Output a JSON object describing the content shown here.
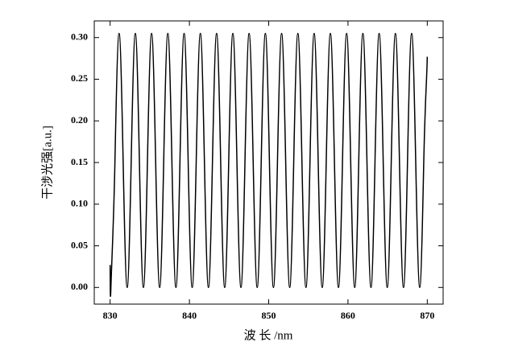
{
  "chart_data": {
    "type": "line",
    "xlabel": "波 长 /nm",
    "ylabel": "干涉光强[a.u.]",
    "xlim": [
      828,
      872
    ],
    "xticks": [
      830,
      840,
      850,
      860,
      870
    ],
    "ylim": [
      -0.02,
      0.32
    ],
    "yticks": [
      {
        "value": 0,
        "label": "0.00"
      },
      {
        "value": 0.05,
        "label": "0.05"
      },
      {
        "value": 0.1,
        "label": "0.10"
      },
      {
        "value": 0.15,
        "label": "0.15"
      },
      {
        "value": 0.2,
        "label": "0.20"
      },
      {
        "value": 0.25,
        "label": "0.25"
      },
      {
        "value": 0.3,
        "label": "0.30"
      }
    ],
    "color": "#000000",
    "x": [
      830.0,
      830.1,
      830.61,
      831.13,
      831.64,
      832.15,
      832.66,
      833.18,
      833.69,
      834.2,
      834.71,
      835.23,
      835.74,
      836.25,
      836.76,
      837.28,
      837.79,
      838.3,
      838.81,
      839.33,
      839.84,
      840.35,
      840.86,
      841.38,
      841.89,
      842.4,
      842.91,
      843.43,
      843.94,
      844.45,
      844.96,
      845.48,
      845.99,
      846.5,
      847.01,
      847.53,
      848.04,
      848.55,
      849.06,
      849.58,
      850.09,
      850.6,
      851.11,
      851.63,
      852.14,
      852.65,
      853.16,
      853.68,
      854.19,
      854.7,
      855.21,
      855.73,
      856.24,
      856.75,
      857.26,
      857.78,
      858.29,
      858.8,
      859.31,
      859.83,
      860.34,
      860.85,
      861.36,
      861.88,
      862.39,
      862.9,
      863.41,
      863.93,
      864.44,
      864.95,
      865.46,
      865.98,
      866.49,
      867.0,
      867.51,
      868.03,
      868.54,
      869.05,
      869.56,
      870.0
    ],
    "values": [
      0.027,
      0,
      0.1525,
      0.305,
      0.1525,
      0,
      0.1525,
      0.305,
      0.1525,
      0,
      0.1525,
      0.305,
      0.1525,
      0,
      0.1525,
      0.305,
      0.1525,
      0,
      0.1525,
      0.305,
      0.1525,
      0,
      0.1525,
      0.305,
      0.1525,
      0,
      0.1525,
      0.305,
      0.1525,
      0,
      0.1525,
      0.305,
      0.1525,
      0,
      0.1525,
      0.305,
      0.1525,
      0,
      0.1525,
      0.305,
      0.1525,
      0,
      0.1525,
      0.305,
      0.1525,
      0,
      0.1525,
      0.305,
      0.1525,
      0,
      0.1525,
      0.305,
      0.1525,
      0,
      0.1525,
      0.305,
      0.1525,
      0,
      0.1525,
      0.305,
      0.1525,
      0,
      0.1525,
      0.305,
      0.1525,
      0,
      0.1525,
      0.305,
      0.1525,
      0,
      0.1525,
      0.305,
      0.1525,
      0,
      0.1525,
      0.305,
      0.1525,
      0,
      0.1525,
      0.277
    ]
  }
}
